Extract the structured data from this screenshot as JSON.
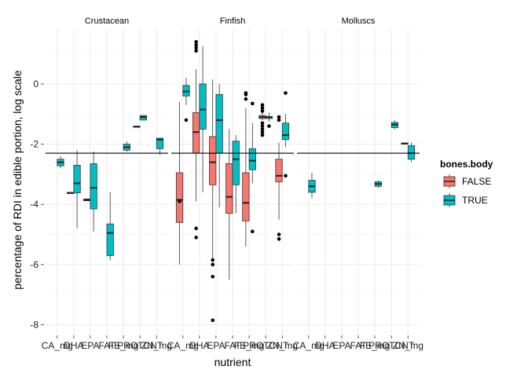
{
  "chart_data": {
    "type": "box",
    "xlabel": "nutrient",
    "ylabel": "percentage of RDI in edible portion, log scale",
    "y_ticks": [
      -8,
      -6,
      -4,
      -2,
      0
    ],
    "ylim": [
      -8.3,
      1.85
    ],
    "grid": true,
    "reference_line_y": -2.3,
    "categories": [
      "CA_mg",
      "DHA",
      "EPA",
      "FAT",
      "FE_mg",
      "PROT",
      "ZN_mg"
    ],
    "tick_labels": [
      "CA_mg",
      "DHA",
      "EPA",
      "FAT",
      "FE_mg",
      "PROTCNT",
      "ZN_mg"
    ],
    "facets": [
      "Crustacean",
      "Finfish",
      "Molluscs"
    ],
    "legend": {
      "title": "bones.body",
      "position": "right",
      "entries": [
        {
          "name": "FALSE",
          "color": "#F8766D"
        },
        {
          "name": "TRUE",
          "color": "#00BFC4"
        }
      ]
    },
    "boxes": [
      {
        "facet": "Crustacean",
        "category": "CA_mg",
        "group": "TRUE",
        "q1": -2.72,
        "median": -2.6,
        "q3": -2.5,
        "whisker_low": -2.8,
        "whisker_high": -2.4,
        "outliers": []
      },
      {
        "facet": "Crustacean",
        "category": "DHA",
        "group": "FALSE",
        "q1": -3.63,
        "median": -3.62,
        "q3": -3.6,
        "whisker_low": -3.63,
        "whisker_high": -3.6,
        "outliers": []
      },
      {
        "facet": "Crustacean",
        "category": "DHA",
        "group": "TRUE",
        "q1": -3.62,
        "median": -3.3,
        "q3": -2.7,
        "whisker_low": -4.8,
        "whisker_high": -2.2,
        "outliers": []
      },
      {
        "facet": "Crustacean",
        "category": "EPA",
        "group": "FALSE",
        "q1": -3.88,
        "median": -3.85,
        "q3": -3.82,
        "whisker_low": -3.88,
        "whisker_high": -3.82,
        "outliers": []
      },
      {
        "facet": "Crustacean",
        "category": "EPA",
        "group": "TRUE",
        "q1": -4.15,
        "median": -3.45,
        "q3": -2.65,
        "whisker_low": -4.9,
        "whisker_high": -2.25,
        "outliers": []
      },
      {
        "facet": "Crustacean",
        "category": "FAT",
        "group": "TRUE",
        "q1": -5.7,
        "median": -4.95,
        "q3": -4.65,
        "whisker_low": -5.85,
        "whisker_high": -3.6,
        "outliers": []
      },
      {
        "facet": "Crustacean",
        "category": "FE_mg",
        "group": "TRUE",
        "q1": -2.2,
        "median": -2.1,
        "q3": -2.0,
        "whisker_low": -2.25,
        "whisker_high": -1.9,
        "outliers": []
      },
      {
        "facet": "Crustacean",
        "category": "PROT",
        "group": "FALSE",
        "q1": -1.43,
        "median": -1.42,
        "q3": -1.4,
        "whisker_low": -1.43,
        "whisker_high": -1.4,
        "outliers": []
      },
      {
        "facet": "Crustacean",
        "category": "PROT",
        "group": "TRUE",
        "q1": -1.2,
        "median": -1.1,
        "q3": -1.05,
        "whisker_low": -1.2,
        "whisker_high": -1.05,
        "outliers": []
      },
      {
        "facet": "Crustacean",
        "category": "ZN_mg",
        "group": "TRUE",
        "q1": -2.15,
        "median": -1.85,
        "q3": -1.8,
        "whisker_low": -2.35,
        "whisker_high": -1.8,
        "outliers": []
      },
      {
        "facet": "Finfish",
        "category": "CA_mg",
        "group": "FALSE",
        "q1": -4.6,
        "median": -3.85,
        "q3": -2.95,
        "whisker_low": -6.0,
        "whisker_high": -0.6,
        "outliers": [
          -3.9
        ]
      },
      {
        "facet": "Finfish",
        "category": "CA_mg",
        "group": "TRUE",
        "q1": -0.4,
        "median": -0.25,
        "q3": -0.05,
        "whisker_low": -0.7,
        "whisker_high": 0.2,
        "outliers": [
          -1.2
        ]
      },
      {
        "facet": "Finfish",
        "category": "DHA",
        "group": "FALSE",
        "q1": -2.3,
        "median": -1.6,
        "q3": -0.95,
        "whisker_low": -3.9,
        "whisker_high": 0.5,
        "outliers": [
          -4.8,
          -5.1,
          1.2,
          1.3,
          1.4,
          1.1
        ]
      },
      {
        "facet": "Finfish",
        "category": "DHA",
        "group": "TRUE",
        "q1": -1.5,
        "median": -0.85,
        "q3": 0.0,
        "whisker_low": -3.6,
        "whisker_high": 1.25,
        "outliers": []
      },
      {
        "facet": "Finfish",
        "category": "EPA",
        "group": "FALSE",
        "q1": -3.35,
        "median": -2.6,
        "q3": -1.75,
        "whisker_low": -5.8,
        "whisker_high": 0.15,
        "outliers": [
          -5.85,
          -6.0,
          -6.4,
          -7.85
        ]
      },
      {
        "facet": "Finfish",
        "category": "EPA",
        "group": "TRUE",
        "q1": -2.3,
        "median": -1.2,
        "q3": -0.35,
        "whisker_low": -4.1,
        "whisker_high": 0.0,
        "outliers": []
      },
      {
        "facet": "Finfish",
        "category": "FAT",
        "group": "FALSE",
        "q1": -4.3,
        "median": -3.75,
        "q3": -2.65,
        "whisker_low": -6.5,
        "whisker_high": -1.5,
        "outliers": []
      },
      {
        "facet": "Finfish",
        "category": "FAT",
        "group": "TRUE",
        "q1": -3.35,
        "median": -2.5,
        "q3": -1.9,
        "whisker_low": -4.3,
        "whisker_high": -1.7,
        "outliers": []
      },
      {
        "facet": "Finfish",
        "category": "FE_mg",
        "group": "FALSE",
        "q1": -4.55,
        "median": -3.95,
        "q3": -2.95,
        "whisker_low": -5.4,
        "whisker_high": -0.8,
        "outliers": [
          -0.5,
          -0.35,
          -0.3
        ]
      },
      {
        "facet": "Finfish",
        "category": "FE_mg",
        "group": "TRUE",
        "q1": -2.85,
        "median": -2.55,
        "q3": -2.15,
        "whisker_low": -3.3,
        "whisker_high": -1.3,
        "outliers": [
          -4.9,
          -0.65
        ]
      },
      {
        "facet": "Finfish",
        "category": "PROT",
        "group": "FALSE",
        "q1": -1.15,
        "median": -1.1,
        "q3": -1.05,
        "whisker_low": -1.2,
        "whisker_high": -0.95,
        "outliers": [
          -0.7,
          -0.8,
          -0.9,
          -1.3,
          -1.4,
          -1.5,
          -1.6,
          -1.7
        ]
      },
      {
        "facet": "Finfish",
        "category": "PROT",
        "group": "TRUE",
        "q1": -1.15,
        "median": -1.1,
        "q3": -1.08,
        "whisker_low": -1.25,
        "whisker_high": -0.95,
        "outliers": [
          -1.4
        ]
      },
      {
        "facet": "Finfish",
        "category": "ZN_mg",
        "group": "FALSE",
        "q1": -3.25,
        "median": -3.05,
        "q3": -2.5,
        "whisker_low": -4.5,
        "whisker_high": -1.95,
        "outliers": [
          -5.0,
          -5.15,
          -1.1,
          -1.2
        ]
      },
      {
        "facet": "Finfish",
        "category": "ZN_mg",
        "group": "TRUE",
        "q1": -1.85,
        "median": -1.7,
        "q3": -1.3,
        "whisker_low": -2.1,
        "whisker_high": -1.0,
        "outliers": [
          -0.3,
          -3.05
        ]
      },
      {
        "facet": "Molluscs",
        "category": "CA_mg",
        "group": "TRUE",
        "q1": -3.6,
        "median": -3.4,
        "q3": -3.2,
        "whisker_low": -3.8,
        "whisker_high": -2.95,
        "outliers": []
      },
      {
        "facet": "Molluscs",
        "category": "FE_mg",
        "group": "TRUE",
        "q1": -3.4,
        "median": -3.32,
        "q3": -3.25,
        "whisker_low": -3.45,
        "whisker_high": -3.2,
        "outliers": []
      },
      {
        "facet": "Molluscs",
        "category": "PROT",
        "group": "TRUE",
        "q1": -1.45,
        "median": -1.35,
        "q3": -1.28,
        "whisker_low": -1.5,
        "whisker_high": -1.2,
        "outliers": []
      },
      {
        "facet": "Molluscs",
        "category": "ZN_mg",
        "group": "FALSE",
        "q1": -2.0,
        "median": -1.98,
        "q3": -1.96,
        "whisker_low": -2.0,
        "whisker_high": -1.96,
        "outliers": []
      },
      {
        "facet": "Molluscs",
        "category": "ZN_mg",
        "group": "TRUE",
        "q1": -2.5,
        "median": -2.3,
        "q3": -2.05,
        "whisker_low": -2.6,
        "whisker_high": -1.95,
        "outliers": []
      }
    ]
  }
}
